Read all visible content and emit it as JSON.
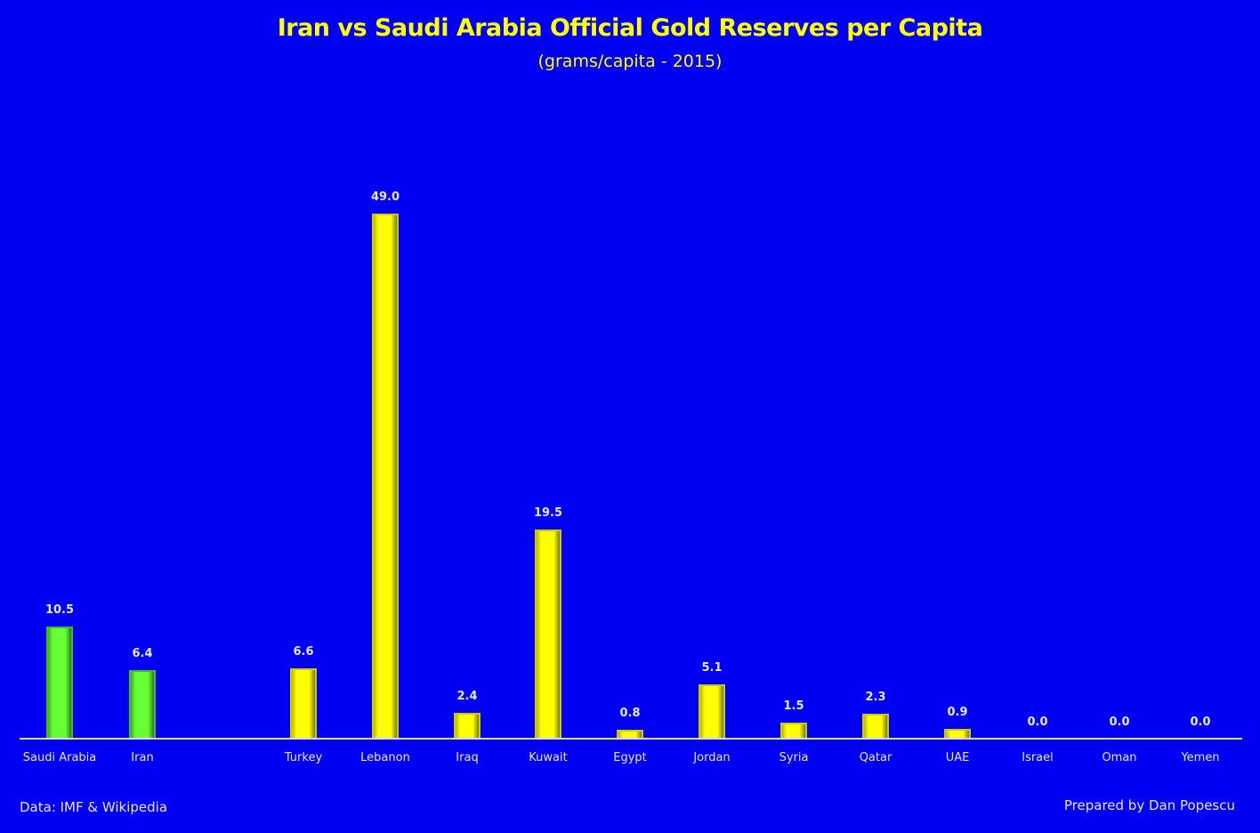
{
  "chart_data": {
    "type": "bar",
    "title": "Iran vs Saudi Arabia Official Gold Reserves per Capita",
    "subtitle": "(grams/capita - 2015)",
    "xlabel": "",
    "ylabel": "grams/capita",
    "categories": [
      "Saudi Arabia",
      "Iran",
      "Turkey",
      "Lebanon",
      "Iraq",
      "Kuwait",
      "Egypt",
      "Jordan",
      "Syria",
      "Qatar",
      "UAE",
      "Israel",
      "Oman",
      "Yemen"
    ],
    "values": [
      10.5,
      6.4,
      6.6,
      49.0,
      2.4,
      19.5,
      0.8,
      5.1,
      1.5,
      2.3,
      0.9,
      0.0,
      0.0,
      0.0
    ],
    "value_labels": [
      "10.5",
      "6.4",
      "6.6",
      "49.0",
      "2.4",
      "19.5",
      "0.8",
      "5.1",
      "1.5",
      "2.3",
      "0.9",
      "0.0",
      "0.0",
      "0.0"
    ],
    "bar_colors": [
      "#66ff33",
      "#66ff33",
      "#ffff00",
      "#ffff00",
      "#ffff00",
      "#ffff00",
      "#ffff00",
      "#ffff00",
      "#ffff00",
      "#ffff00",
      "#ffff00",
      "#ffff00",
      "#ffff00",
      "#ffff00"
    ],
    "ylim": [
      0,
      50
    ],
    "grid": false,
    "legend": "none",
    "background": "#0000f2"
  },
  "footer": {
    "source": "Data: IMF & Wikipedia",
    "credit": "Prepared by Dan Popescu"
  }
}
